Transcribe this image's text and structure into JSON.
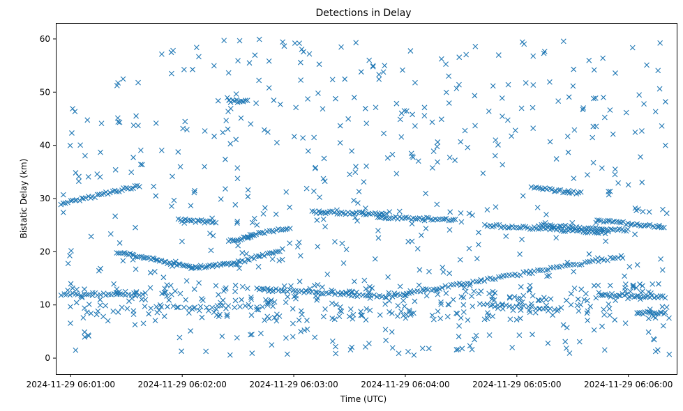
{
  "chart_data": {
    "type": "scatter",
    "title": "Detections in Delay",
    "xlabel": "Time (UTC)",
    "ylabel": "Bistatic Delay (km)",
    "marker": "x",
    "color": "#1f77b4",
    "xlim": [
      "2024-11-29 06:00:52",
      "2024-11-29 06:06:26"
    ],
    "ylim": [
      -3,
      63
    ],
    "x_ticks": [
      "2024-11-29 06:01:00",
      "2024-11-29 06:02:00",
      "2024-11-29 06:03:00",
      "2024-11-29 06:04:00",
      "2024-11-29 06:05:00",
      "2024-11-29 06:06:00"
    ],
    "y_ticks": [
      "0",
      "10",
      "20",
      "30",
      "40",
      "50",
      "60"
    ],
    "grid": false,
    "legend": "none",
    "x_unit": "seconds after 2024-11-29 06:01:00",
    "tracks": [
      {
        "x": [
          -5,
          38
        ],
        "y": [
          29,
          32.5
        ],
        "step": 1.2
      },
      {
        "x": [
          -5,
          40
        ],
        "y": [
          12,
          12
        ],
        "step": 1.5
      },
      {
        "x": [
          58,
          78
        ],
        "y": [
          26,
          25.5
        ],
        "step": 1
      },
      {
        "x": [
          25,
          65
        ],
        "y": [
          20,
          17
        ],
        "step": 1
      },
      {
        "x": [
          65,
          90
        ],
        "y": [
          17,
          17.8
        ],
        "step": 1
      },
      {
        "x": [
          90,
          115
        ],
        "y": [
          18,
          20.5
        ],
        "step": 1.2
      },
      {
        "x": [
          85,
          98
        ],
        "y": [
          22,
          22.8
        ],
        "step": 1
      },
      {
        "x": [
          95,
          118
        ],
        "y": [
          23,
          24.5
        ],
        "step": 1.2
      },
      {
        "x": [
          130,
          170
        ],
        "y": [
          27.5,
          27
        ],
        "step": 1.2
      },
      {
        "x": [
          100,
          170
        ],
        "y": [
          13,
          11.5
        ],
        "step": 1.5
      },
      {
        "x": [
          170,
          295
        ],
        "y": [
          11.5,
          19
        ],
        "step": 1.5
      },
      {
        "x": [
          285,
          320
        ],
        "y": [
          12,
          11.5
        ],
        "step": 1.2
      },
      {
        "x": [
          305,
          320
        ],
        "y": [
          8.5,
          8.5
        ],
        "step": 1
      },
      {
        "x": [
          165,
          207
        ],
        "y": [
          26.5,
          26
        ],
        "step": 1.2
      },
      {
        "x": [
          223,
          290
        ],
        "y": [
          25,
          23.5
        ],
        "step": 1.2
      },
      {
        "x": [
          252,
          300
        ],
        "y": [
          25,
          24
        ],
        "step": 1.2
      },
      {
        "x": [
          248,
          275
        ],
        "y": [
          32,
          31
        ],
        "step": 1.2
      },
      {
        "x": [
          283,
          320
        ],
        "y": [
          26,
          24.5
        ],
        "step": 1.2
      },
      {
        "x": [
          40,
          110
        ],
        "y": [
          9.5,
          9.8
        ],
        "step": 3
      },
      {
        "x": [
          220,
          265
        ],
        "y": [
          10,
          9.2
        ],
        "step": 2
      },
      {
        "x": [
          85,
          95
        ],
        "y": [
          48.3,
          48.3
        ],
        "step": 1
      }
    ],
    "clutter": {
      "count": 560,
      "x_range": [
        -4,
        322
      ],
      "y_range": [
        0.5,
        60
      ],
      "seed": 12345
    },
    "near_track_clutter": {
      "count": 260,
      "y_range": [
        7,
        14
      ],
      "seed": 777
    }
  }
}
